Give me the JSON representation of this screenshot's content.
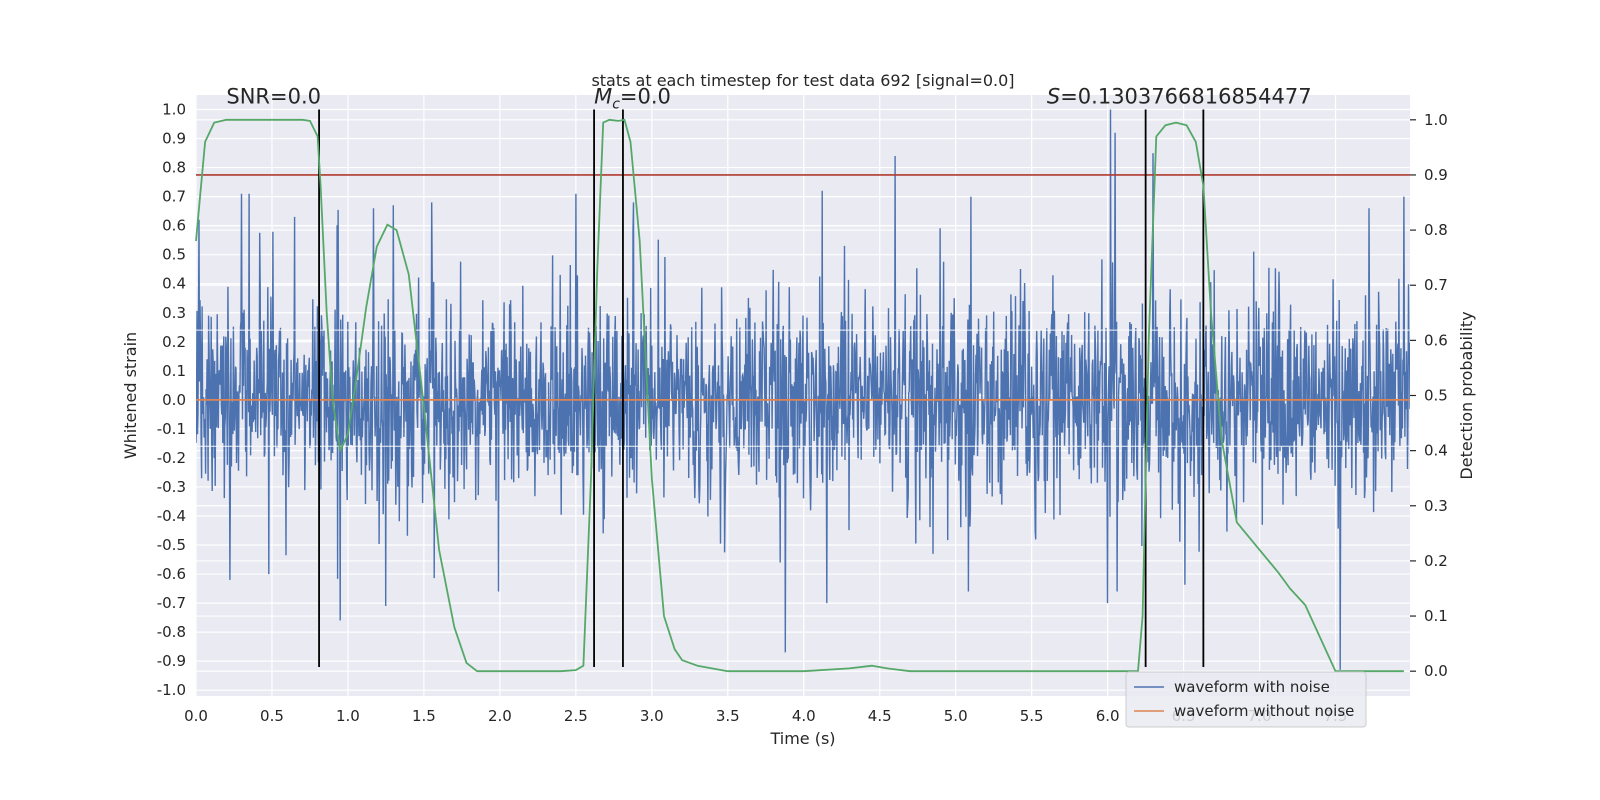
{
  "chart_data": {
    "type": "line",
    "title": "stats at each timestep for test data 692 [signal=0.0]",
    "xlabel": "Time (s)",
    "ylabel": "Whitened strain",
    "y2label": "Detection probability",
    "xlim": [
      0.0,
      7.99
    ],
    "ylim": [
      -1.02,
      1.05
    ],
    "y2lim": [
      -0.045,
      1.045
    ],
    "x_ticks": [
      "0.0",
      "0.5",
      "1.0",
      "1.5",
      "2.0",
      "2.5",
      "3.0",
      "3.5",
      "4.0",
      "4.5",
      "5.0",
      "5.5",
      "6.0",
      "6.5",
      "7.0",
      "7.5"
    ],
    "y_ticks": [
      "-1.0",
      "-0.9",
      "-0.8",
      "-0.7",
      "-0.6",
      "-0.5",
      "-0.4",
      "-0.3",
      "-0.2",
      "-0.1",
      "0.0",
      "0.1",
      "0.2",
      "0.3",
      "0.4",
      "0.5",
      "0.6",
      "0.7",
      "0.8",
      "0.9",
      "1.0"
    ],
    "y2_ticks": [
      "0.0",
      "0.1",
      "0.2",
      "0.3",
      "0.4",
      "0.5",
      "0.6",
      "0.7",
      "0.8",
      "0.9",
      "1.0"
    ],
    "grid": true,
    "legend": {
      "position": "lower-right",
      "entries": [
        "waveform with noise",
        "waveform without noise"
      ]
    },
    "annotations": [
      {
        "text": "SNR=0.0",
        "x": 0.2,
        "y": 1.02
      },
      {
        "text_prefix": "M",
        "text_sub": "c",
        "text_suffix": "=0.0",
        "x": 2.62,
        "y": 1.02
      },
      {
        "text_prefix": "S",
        "text_suffix": "=0.1303766816854477",
        "x": 5.6,
        "y": 1.02
      }
    ],
    "threshold": {
      "axis": "right",
      "value": 0.9,
      "color": "#b03a2e"
    },
    "event_lines": [
      0.81,
      2.62,
      2.81,
      6.25,
      6.63
    ],
    "event_line_range": [
      -0.92,
      1.0
    ],
    "series": [
      {
        "name": "waveform with noise",
        "axis": "left",
        "color": "#4c72b0",
        "style": "noise",
        "band": [
          -0.16,
          0.24
        ],
        "peaks": [
          {
            "x": 0.02,
            "y": 0.62
          },
          {
            "x": 0.3,
            "y": 0.71
          },
          {
            "x": 0.35,
            "y": 0.71
          },
          {
            "x": 0.65,
            "y": 0.63
          },
          {
            "x": 1.3,
            "y": 0.67
          },
          {
            "x": 1.55,
            "y": 0.68
          },
          {
            "x": 2.5,
            "y": 0.71
          },
          {
            "x": 2.88,
            "y": 0.68
          },
          {
            "x": 4.12,
            "y": 0.72
          },
          {
            "x": 4.6,
            "y": 0.84
          },
          {
            "x": 5.1,
            "y": 0.7
          },
          {
            "x": 6.02,
            "y": 1.0
          },
          {
            "x": 6.05,
            "y": 0.92
          },
          {
            "x": 6.3,
            "y": 0.85
          },
          {
            "x": 7.95,
            "y": 0.7
          },
          {
            "x": 0.48,
            "y": -0.6
          },
          {
            "x": 0.95,
            "y": -0.76
          },
          {
            "x": 1.25,
            "y": -0.71
          },
          {
            "x": 3.88,
            "y": -0.87
          },
          {
            "x": 4.15,
            "y": -0.7
          },
          {
            "x": 6.0,
            "y": -0.7
          },
          {
            "x": 7.53,
            "y": -0.93
          }
        ]
      },
      {
        "name": "waveform without noise",
        "axis": "left",
        "color": "#dd8452",
        "values_constant": 0.0
      },
      {
        "name": "detection probability",
        "axis": "right",
        "color": "#55a868",
        "x": [
          0.0,
          0.02,
          0.06,
          0.12,
          0.2,
          0.3,
          0.4,
          0.5,
          0.6,
          0.7,
          0.75,
          0.8,
          0.82,
          0.86,
          0.9,
          0.95,
          1.0,
          1.05,
          1.12,
          1.19,
          1.26,
          1.32,
          1.4,
          1.5,
          1.6,
          1.7,
          1.78,
          1.85,
          2.0,
          2.2,
          2.4,
          2.5,
          2.55,
          2.6,
          2.64,
          2.68,
          2.72,
          2.78,
          2.82,
          2.86,
          2.92,
          3.0,
          3.08,
          3.15,
          3.2,
          3.3,
          3.5,
          4.0,
          4.3,
          4.45,
          4.55,
          4.7,
          5.0,
          5.5,
          6.0,
          6.2,
          6.23,
          6.27,
          6.32,
          6.38,
          6.45,
          6.52,
          6.58,
          6.63,
          6.68,
          6.75,
          6.85,
          7.0,
          7.12,
          7.2,
          7.3,
          7.5,
          7.95
        ],
        "values": [
          0.78,
          0.84,
          0.96,
          0.995,
          1.0,
          1.0,
          1.0,
          1.0,
          1.0,
          1.0,
          0.998,
          0.97,
          0.88,
          0.65,
          0.49,
          0.4,
          0.43,
          0.52,
          0.66,
          0.77,
          0.81,
          0.8,
          0.72,
          0.48,
          0.22,
          0.08,
          0.015,
          0.0,
          0.0,
          0.0,
          0.0,
          0.002,
          0.01,
          0.35,
          0.72,
          0.995,
          1.0,
          0.998,
          1.0,
          0.96,
          0.78,
          0.35,
          0.1,
          0.04,
          0.02,
          0.01,
          0.0,
          0.0,
          0.005,
          0.01,
          0.005,
          0.0,
          0.0,
          0.0,
          0.0,
          0.0,
          0.1,
          0.6,
          0.97,
          0.99,
          0.995,
          0.99,
          0.96,
          0.88,
          0.65,
          0.42,
          0.27,
          0.22,
          0.18,
          0.15,
          0.12,
          0.0,
          0.0
        ]
      }
    ]
  }
}
